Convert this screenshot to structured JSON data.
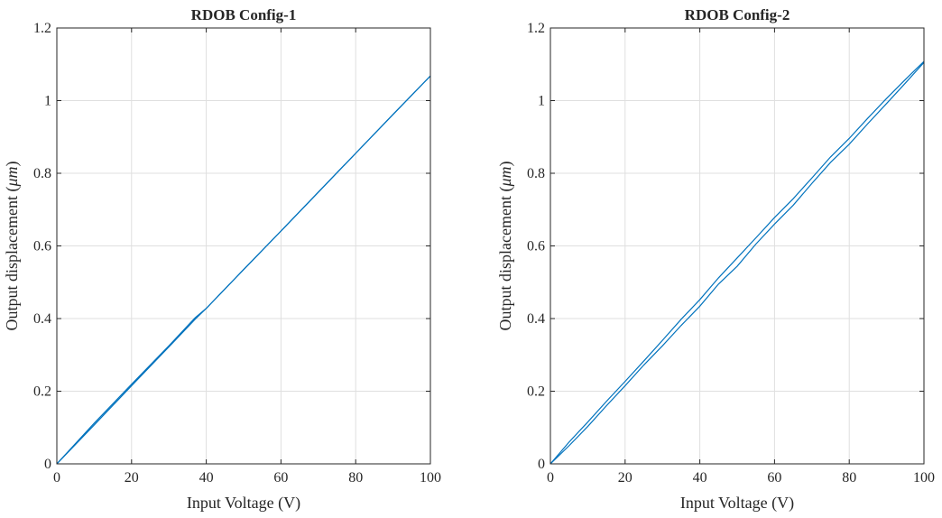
{
  "chart_data": [
    {
      "type": "line",
      "title": "RDOB Config-1",
      "xlabel": "Input Voltage (V)",
      "ylabel_prefix": "Output displacement (",
      "ylabel_unit": "μm",
      "ylabel_suffix": ")",
      "xlim": [
        0,
        100
      ],
      "ylim": [
        0,
        1.2
      ],
      "xticks": [
        "0",
        "20",
        "40",
        "60",
        "80",
        "100"
      ],
      "yticks": [
        "0",
        "0.2",
        "0.4",
        "0.6",
        "0.8",
        "1",
        "1.2"
      ],
      "grid": true,
      "color": "#0072bd",
      "series": [
        {
          "x": [
            0,
            10,
            20,
            30,
            37,
            40,
            50,
            60,
            70,
            80,
            90,
            100
          ],
          "values": [
            0,
            0.107,
            0.215,
            0.322,
            0.398,
            0.428,
            0.535,
            0.641,
            0.748,
            0.855,
            0.962,
            1.068
          ]
        },
        {
          "x": [
            0,
            10,
            20,
            30,
            37,
            40,
            50,
            60,
            70,
            80,
            90,
            100
          ],
          "values": [
            0,
            0.112,
            0.219,
            0.325,
            0.402,
            0.428,
            0.535,
            0.641,
            0.748,
            0.855,
            0.962,
            1.068
          ]
        }
      ]
    },
    {
      "type": "line",
      "title": "RDOB Config-2",
      "xlabel": "Input Voltage (V)",
      "ylabel_prefix": "Output displacement (",
      "ylabel_unit": "μm",
      "ylabel_suffix": ")",
      "xlim": [
        0,
        100
      ],
      "ylim": [
        0,
        1.2
      ],
      "xticks": [
        "0",
        "20",
        "40",
        "60",
        "80",
        "100"
      ],
      "yticks": [
        "0",
        "0.2",
        "0.4",
        "0.6",
        "0.8",
        "1",
        "1.2"
      ],
      "grid": true,
      "color": "#0072bd",
      "series": [
        {
          "x": [
            0,
            5,
            10,
            15,
            20,
            25,
            30,
            35,
            40,
            45,
            50,
            55,
            60,
            65,
            70,
            75,
            80,
            85,
            90,
            95,
            100
          ],
          "values": [
            0,
            0.05,
            0.103,
            0.16,
            0.215,
            0.272,
            0.325,
            0.381,
            0.434,
            0.495,
            0.544,
            0.605,
            0.66,
            0.712,
            0.772,
            0.83,
            0.88,
            0.937,
            0.992,
            1.048,
            1.105
          ]
        },
        {
          "x": [
            0,
            5,
            10,
            15,
            20,
            25,
            30,
            35,
            40,
            45,
            50,
            55,
            60,
            65,
            70,
            75,
            80,
            85,
            90,
            95,
            100
          ],
          "values": [
            0,
            0.06,
            0.115,
            0.172,
            0.227,
            0.283,
            0.34,
            0.398,
            0.452,
            0.512,
            0.567,
            0.622,
            0.678,
            0.73,
            0.787,
            0.845,
            0.896,
            0.952,
            1.006,
            1.058,
            1.108
          ]
        }
      ]
    }
  ]
}
